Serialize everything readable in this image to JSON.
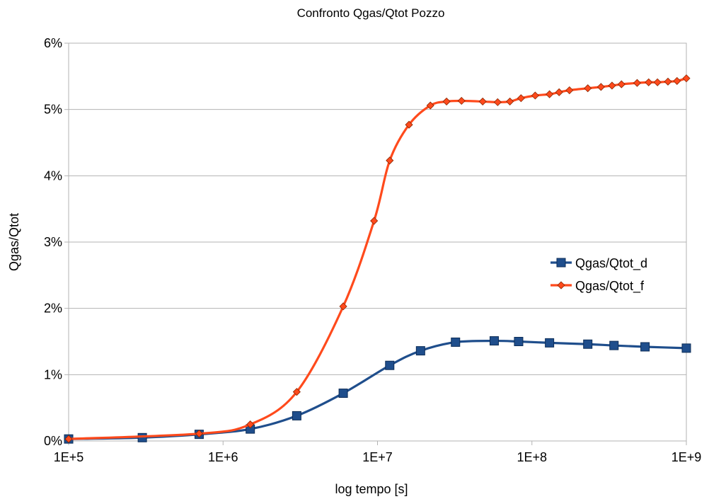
{
  "chart_data": {
    "type": "line",
    "title": "Confronto Qgas/Qtot Pozzo",
    "xlabel": "log tempo [s]",
    "ylabel": "Qgas/Qtot",
    "x_scale": "log",
    "xlim": [
      100000,
      1000000000
    ],
    "ylim": [
      0,
      0.06
    ],
    "x_ticks": [
      100000,
      1000000,
      10000000,
      100000000,
      1000000000
    ],
    "x_tick_labels": [
      "1E+5",
      "1E+6",
      "1E+7",
      "1E+8",
      "1E+9"
    ],
    "y_ticks": [
      0,
      0.01,
      0.02,
      0.03,
      0.04,
      0.05,
      0.06
    ],
    "y_tick_labels": [
      "0%",
      "1%",
      "2%",
      "3%",
      "4%",
      "5%",
      "6%"
    ],
    "grid": "horizontal",
    "legend_position": "right",
    "series": [
      {
        "name": "Qgas/Qtot_d",
        "color": "#1f4e8c",
        "marker": "square",
        "x": [
          100000,
          300000,
          700000,
          1500000,
          3000000,
          6000000,
          12000000,
          19000000,
          32000000,
          57000000,
          82000000,
          130000000,
          230000000,
          340000000,
          540000000,
          1000000000
        ],
        "y": [
          0.0003,
          0.0005,
          0.001,
          0.0018,
          0.0038,
          0.0072,
          0.0114,
          0.0136,
          0.0149,
          0.0151,
          0.015,
          0.0148,
          0.0146,
          0.0144,
          0.0142,
          0.014
        ]
      },
      {
        "name": "Qgas/Qtot_f",
        "color": "#ff4a1c",
        "marker": "diamond",
        "x": [
          100000,
          700000,
          1500000,
          3000000,
          6000000,
          9500000,
          12000000,
          16000000,
          22000000,
          28000000,
          35000000,
          48000000,
          60000000,
          72000000,
          85000000,
          105000000,
          130000000,
          150000000,
          175000000,
          230000000,
          280000000,
          330000000,
          380000000,
          480000000,
          570000000,
          650000000,
          760000000,
          870000000,
          1000000000
        ],
        "y": [
          0.0003,
          0.0011,
          0.0025,
          0.0074,
          0.0203,
          0.0332,
          0.0423,
          0.0477,
          0.0506,
          0.0512,
          0.0513,
          0.0512,
          0.0511,
          0.0512,
          0.0517,
          0.0521,
          0.0523,
          0.0526,
          0.0529,
          0.0532,
          0.0534,
          0.0536,
          0.0538,
          0.054,
          0.0541,
          0.0541,
          0.0542,
          0.0543,
          0.0547
        ]
      }
    ]
  }
}
